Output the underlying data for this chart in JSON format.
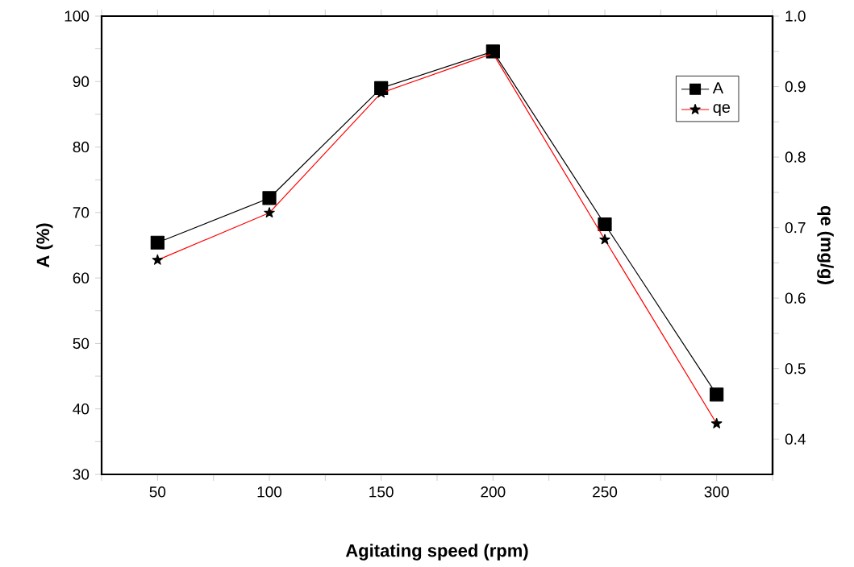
{
  "chart_data": {
    "type": "line",
    "xlabel": "Agitating speed (rpm)",
    "ylabel": "A (%)",
    "y2label": "qe (mg/g)",
    "x": [
      50,
      100,
      150,
      200,
      250,
      300
    ],
    "series": [
      {
        "name": "A",
        "color": "#000000",
        "marker": "square",
        "values": [
          65.4,
          72.2,
          89.0,
          94.6,
          68.2,
          42.2
        ]
      },
      {
        "name": "qe",
        "color": "#ff0000",
        "marker": "star",
        "axis": "y2",
        "values": [
          0.654,
          0.721,
          0.891,
          0.947,
          0.683,
          0.422
        ]
      }
    ],
    "xlim": [
      25,
      325
    ],
    "ylim": [
      30,
      100
    ],
    "y2lim": [
      0.35,
      1.0
    ],
    "xticks": [
      {
        "value": 25,
        "label": null
      },
      50,
      {
        "value": 75,
        "label": null
      },
      100,
      {
        "value": 125,
        "label": null
      },
      150,
      {
        "value": 175,
        "label": null
      },
      200,
      {
        "value": 225,
        "label": null
      },
      250,
      {
        "value": 275,
        "label": null
      },
      300,
      {
        "value": 325,
        "label": null
      }
    ],
    "yticks": [
      30,
      {
        "value": 35,
        "label": null
      },
      40,
      {
        "value": 45,
        "label": null
      },
      50,
      {
        "value": 55,
        "label": null
      },
      60,
      {
        "value": 65,
        "label": null
      },
      70,
      {
        "value": 75,
        "label": null
      },
      80,
      {
        "value": 85,
        "label": null
      },
      90,
      {
        "value": 95,
        "label": null
      },
      100
    ],
    "y2ticks": [
      {
        "value": 0.4,
        "label": "0.4"
      },
      {
        "value": 0.45,
        "label": null
      },
      {
        "value": 0.5,
        "label": "0.5"
      },
      {
        "value": 0.55,
        "label": null
      },
      {
        "value": 0.6,
        "label": "0.6"
      },
      {
        "value": 0.65,
        "label": null
      },
      {
        "value": 0.7,
        "label": "0.7"
      },
      {
        "value": 0.75,
        "label": null
      },
      {
        "value": 0.8,
        "label": "0.8"
      },
      {
        "value": 0.85,
        "label": null
      },
      {
        "value": 0.9,
        "label": "0.9"
      },
      {
        "value": 0.95,
        "label": null
      },
      {
        "value": 1.0,
        "label": "1.0"
      }
    ],
    "legend": "top right"
  }
}
